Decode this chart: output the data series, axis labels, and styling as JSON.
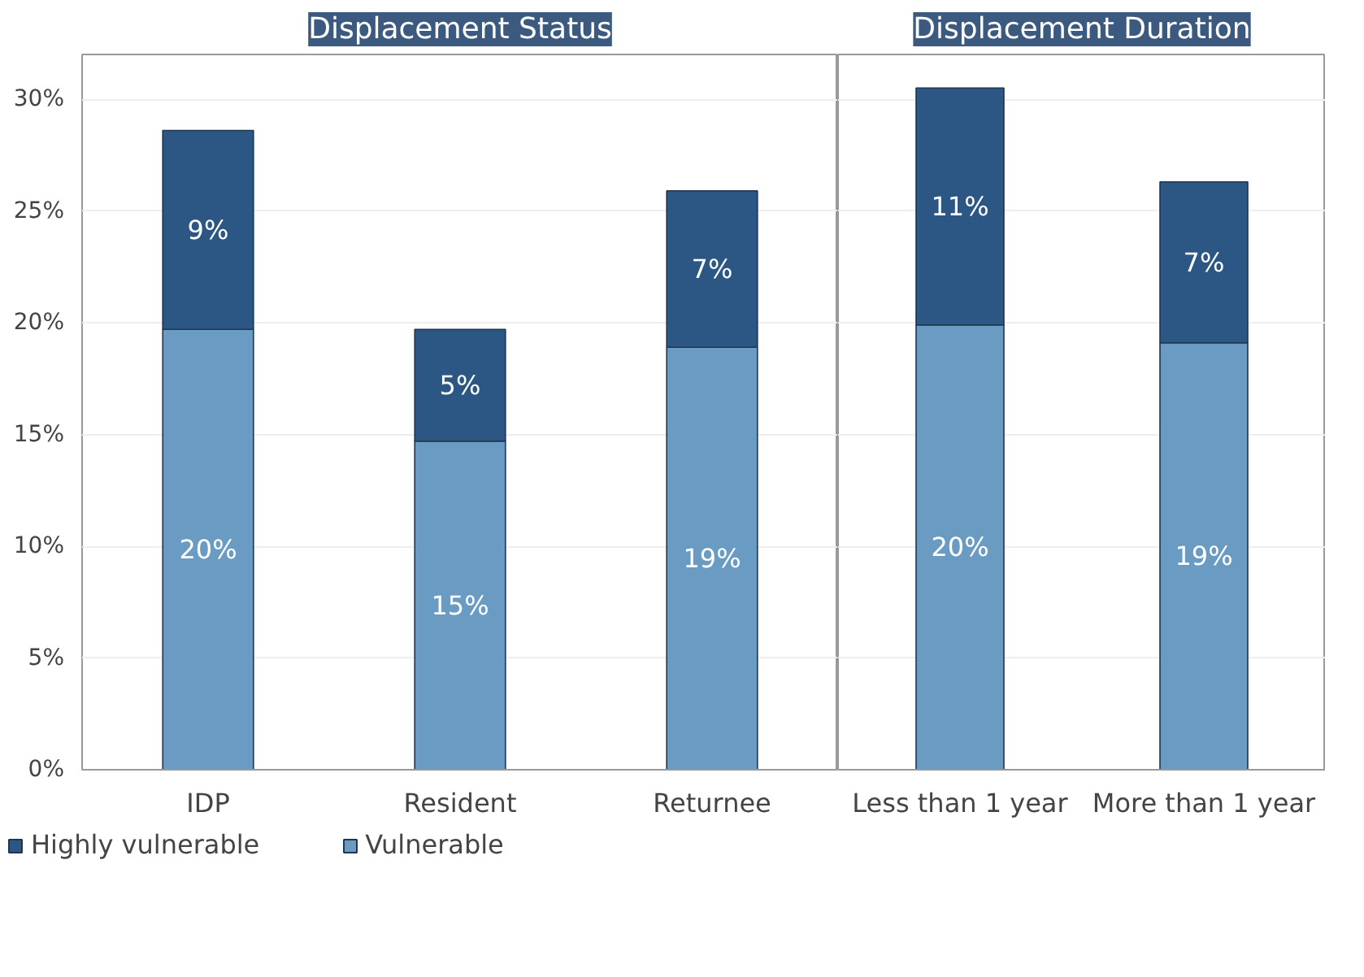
{
  "chart_data": [
    {
      "type": "bar",
      "title": "Displacement Status",
      "categories": [
        "IDP",
        "Resident",
        "Returnee"
      ],
      "stacked": true,
      "ylim": [
        0,
        32
      ],
      "yticks": [
        {
          "value": 0,
          "label": "0%"
        },
        {
          "value": 5,
          "label": "5%"
        },
        {
          "value": 10,
          "label": "10%"
        },
        {
          "value": 15,
          "label": "15%"
        },
        {
          "value": 20,
          "label": "20%"
        },
        {
          "value": 25,
          "label": "25%"
        },
        {
          "value": 30,
          "label": "30%"
        }
      ],
      "grid": "y",
      "legend": "bottom left",
      "series": [
        {
          "name": "Vulnerable",
          "color": "#6a9bc3",
          "values": [
            19.7,
            14.7,
            18.9
          ],
          "value_labels": [
            "20%",
            "15%",
            "19%"
          ]
        },
        {
          "name": "Highly vulnerable",
          "color": "#2c5683",
          "values": [
            8.9,
            5.0,
            7.0
          ],
          "value_labels": [
            "9%",
            "5%",
            "7%"
          ]
        }
      ]
    },
    {
      "type": "bar",
      "title": "Displacement Duration",
      "categories": [
        "Less than 1 year",
        "More than 1 year"
      ],
      "stacked": true,
      "ylim": [
        0,
        32
      ],
      "yticks": [
        0,
        5,
        10,
        15,
        20,
        25,
        30
      ],
      "grid": "y",
      "tick_labels": "x",
      "series": [
        {
          "color": "#6a9bc3",
          "values": [
            19.9,
            19.1
          ],
          "value_labels": [
            "20%",
            "19%"
          ]
        },
        {
          "color": "#2c5683",
          "values": [
            10.6,
            7.2
          ],
          "value_labels": [
            "11%",
            "7%"
          ]
        }
      ]
    }
  ]
}
